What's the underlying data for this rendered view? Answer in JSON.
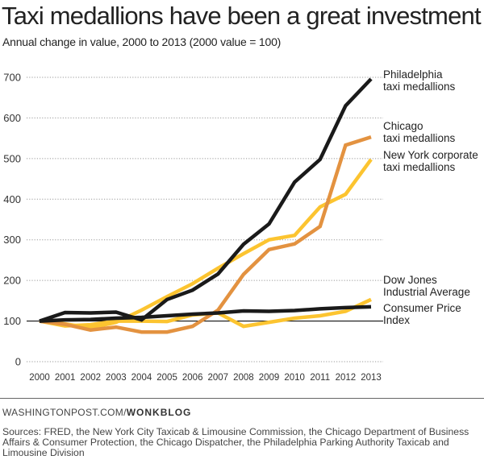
{
  "header": {
    "title": "Taxi medallions have been a great investment",
    "subtitle": "Annual change in value, 2000 to 2013 (2000 value = 100)"
  },
  "footer": {
    "credit_prefix": "WASHINGTONPOST.COM/",
    "credit_bold": "WONKBLOG",
    "sources": "Sources: FRED, the New York City Taxicab & Limousine Commission, the Chicago Department of Business Affairs & Consumer Protection, the Chicago Dispatcher, the Philadelphia Parking Authority Taxicab and Limousine Division"
  },
  "chart_data": {
    "type": "line",
    "title": "Taxi medallions have been a great investment",
    "subtitle": "Annual change in value, 2000 to 2013 (2000 value = 100)",
    "xlabel": "",
    "ylabel": "",
    "x": [
      "2000",
      "2001",
      "2002",
      "2003",
      "2004",
      "2005",
      "2006",
      "2007",
      "2008",
      "2009",
      "2010",
      "2011",
      "2012",
      "2013"
    ],
    "ylim": [
      0,
      700
    ],
    "yticks": [
      0,
      100,
      200,
      300,
      400,
      500,
      600,
      700
    ],
    "grid": "horizontal dotted",
    "baseline": 100,
    "legend": "direct labels at right",
    "series": [
      {
        "name": "Dow Jones Industrial Average",
        "label_lines": [
          "Dow Jones",
          "Industrial Average"
        ],
        "color": "#fcc430",
        "values": [
          100,
          88,
          91,
          100,
          100,
          99,
          115,
          120,
          87,
          97,
          107,
          113,
          124,
          153
        ]
      },
      {
        "name": "New York corporate taxi medallions",
        "label_lines": [
          "New York corporate",
          "taxi medallions"
        ],
        "color": "#fcc430",
        "values": [
          100,
          93,
          83,
          97,
          127,
          160,
          192,
          230,
          266,
          300,
          311,
          381,
          412,
          498
        ]
      },
      {
        "name": "Chicago taxi medallions",
        "label_lines": [
          "Chicago",
          "taxi medallions"
        ],
        "color": "#e39240",
        "values": [
          100,
          92,
          78,
          85,
          73,
          73,
          87,
          127,
          215,
          276,
          290,
          333,
          533,
          553
        ]
      },
      {
        "name": "Consumer Price Index",
        "label_lines": [
          "Consumer Price",
          "Index"
        ],
        "color": "#1a1a1a",
        "values": [
          100,
          103,
          104,
          107,
          109,
          113,
          117,
          120,
          125,
          124,
          126,
          130,
          133,
          135
        ]
      },
      {
        "name": "Philadelphia taxi medallions",
        "label_lines": [
          "Philadelphia",
          "taxi medallions"
        ],
        "color": "#1a1a1a",
        "values": [
          100,
          121,
          120,
          122,
          103,
          153,
          176,
          216,
          289,
          339,
          442,
          498,
          630,
          696
        ]
      }
    ]
  }
}
